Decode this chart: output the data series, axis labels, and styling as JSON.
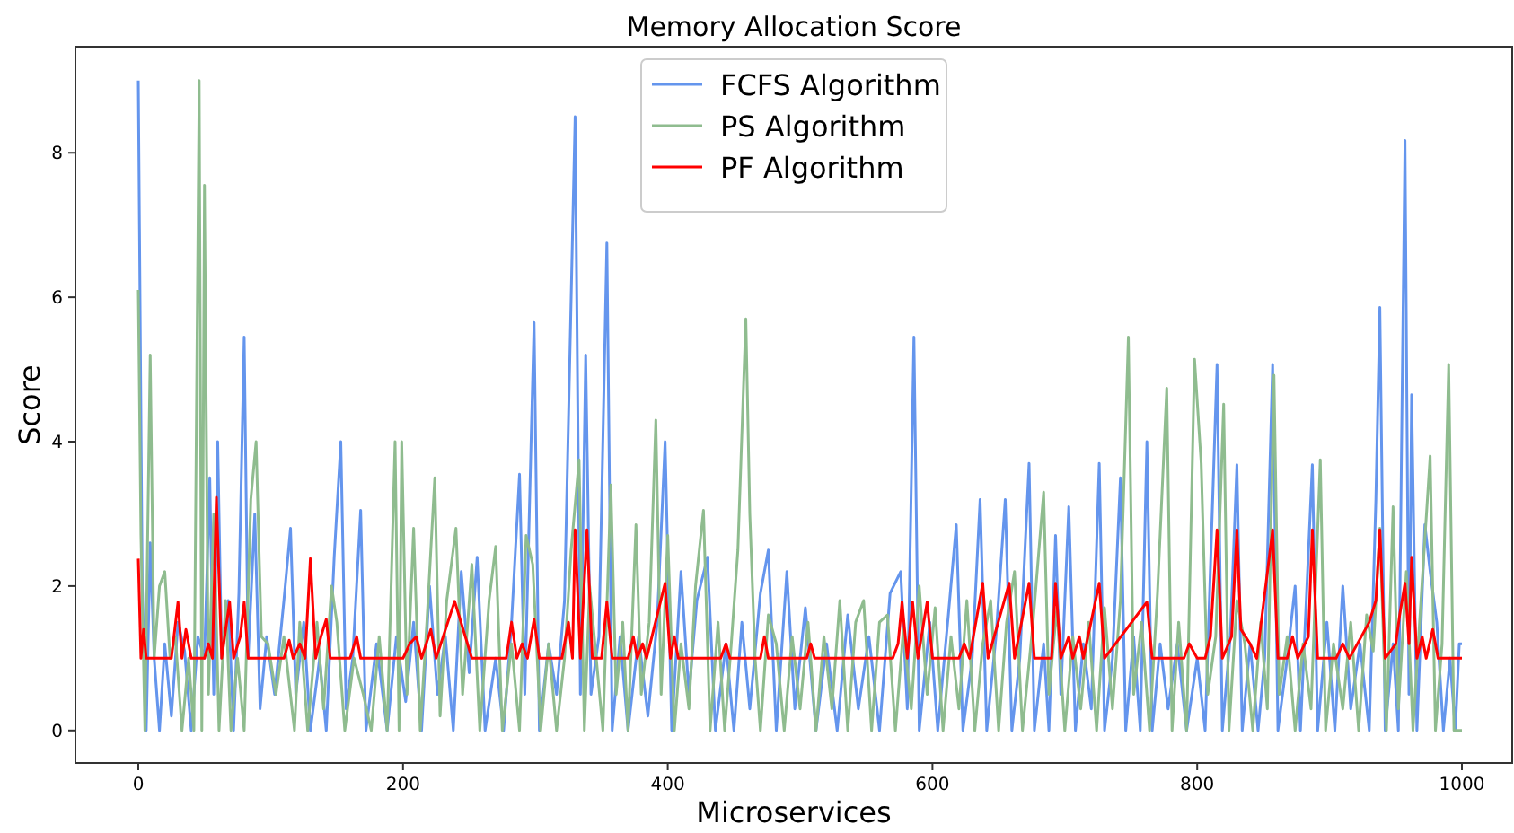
{
  "chart_data": {
    "type": "line",
    "title": "Memory Allocation Score",
    "xlabel": "Microservices",
    "ylabel": "Score",
    "xlim": [
      -47.5,
      1038
    ],
    "ylim": [
      -0.45,
      9.47
    ],
    "xticks": [
      0,
      200,
      400,
      600,
      800,
      1000
    ],
    "yticks": [
      0,
      2,
      4,
      6,
      8
    ],
    "grid": false,
    "legend": "top",
    "line_style": "solid",
    "marker": "none",
    "series": [
      {
        "name": "FCFS Algorithm",
        "color": "#6495ed",
        "x": [
          0,
          3,
          6,
          9,
          12,
          16,
          20,
          25,
          30,
          35,
          40,
          45,
          50,
          54,
          57,
          60,
          63,
          68,
          72,
          76,
          80,
          83,
          88,
          92,
          97,
          103,
          110,
          115,
          119,
          125,
          130,
          137,
          142,
          148,
          153,
          157,
          162,
          168,
          172,
          180,
          188,
          195,
          202,
          208,
          214,
          220,
          226,
          232,
          238,
          244,
          250,
          256,
          262,
          270,
          276,
          282,
          288,
          292,
          299,
          303,
          310,
          316,
          322,
          330,
          334,
          338,
          342,
          348,
          354,
          358,
          364,
          370,
          378,
          385,
          392,
          398,
          403,
          410,
          416,
          422,
          430,
          436,
          444,
          450,
          456,
          462,
          470,
          476,
          482,
          490,
          496,
          504,
          512,
          520,
          528,
          536,
          544,
          552,
          560,
          568,
          576,
          581,
          586,
          590,
          598,
          604,
          612,
          618,
          623,
          630,
          636,
          641,
          648,
          655,
          660,
          666,
          673,
          677,
          684,
          688,
          693,
          697,
          703,
          708,
          714,
          720,
          726,
          730,
          736,
          742,
          746,
          752,
          757,
          762,
          766,
          772,
          778,
          785,
          792,
          800,
          806,
          815,
          819,
          825,
          830,
          834,
          840,
          846,
          851,
          857,
          861,
          868,
          874,
          878,
          887,
          891,
          898,
          904,
          910,
          916,
          923,
          930,
          935,
          938,
          942,
          948,
          952,
          957,
          960,
          962,
          966,
          972,
          976,
          981,
          986,
          991,
          995,
          998,
          1000
        ],
        "values": [
          9.0,
          2.0,
          0,
          2.6,
          1.0,
          0,
          1.2,
          0.2,
          1.5,
          1.1,
          0,
          1.3,
          1.0,
          3.5,
          0.5,
          4.0,
          1.0,
          1.8,
          0,
          1.9,
          5.45,
          1.0,
          3.0,
          0.3,
          1.3,
          0.5,
          1.8,
          2.8,
          0.5,
          1.5,
          0,
          1.0,
          0,
          2.4,
          4.0,
          0.3,
          1.0,
          3.05,
          0,
          1.2,
          0,
          1.3,
          0.4,
          1.5,
          0,
          2.0,
          0.5,
          1.3,
          0,
          2.2,
          0.8,
          2.4,
          0,
          1.0,
          0,
          1.5,
          3.55,
          0.5,
          5.65,
          0,
          1.2,
          0.5,
          1.8,
          8.5,
          0.5,
          5.2,
          0.5,
          1.3,
          6.75,
          0,
          1.3,
          0,
          1.3,
          0.2,
          1.5,
          4.0,
          0,
          2.2,
          0.5,
          1.8,
          2.4,
          0,
          1.2,
          0,
          1.5,
          0.3,
          1.9,
          2.5,
          0,
          2.2,
          0.3,
          1.7,
          0,
          1.2,
          0,
          1.6,
          0.3,
          1.3,
          0,
          1.9,
          2.2,
          0.3,
          5.45,
          0,
          1.5,
          0,
          1.6,
          2.85,
          0,
          1.0,
          3.2,
          0,
          1.3,
          3.2,
          0,
          1.0,
          3.7,
          0,
          1.2,
          0,
          2.7,
          0.5,
          3.1,
          0,
          1.2,
          0.3,
          3.7,
          0,
          1.0,
          3.5,
          0,
          1.3,
          0,
          4.0,
          0,
          1.2,
          0.3,
          1.2,
          0,
          1.0,
          0,
          5.07,
          0,
          1.3,
          3.68,
          0,
          1.2,
          0,
          1.0,
          5.07,
          0,
          1.0,
          2.0,
          0,
          3.68,
          0,
          1.5,
          0,
          2.0,
          0.3,
          1.2,
          0,
          3.2,
          5.86,
          0,
          1.2,
          0,
          8.17,
          0.5,
          4.65,
          0,
          2.85,
          2.2,
          1.5,
          0,
          1.0,
          0,
          1.2,
          1.2
        ]
      },
      {
        "name": "PS Algorithm",
        "color": "#8fbc8f",
        "x": [
          0,
          2,
          5,
          9,
          12,
          16,
          20,
          24,
          28,
          33,
          38,
          42,
          46,
          48,
          50,
          53,
          57,
          61,
          66,
          70,
          75,
          80,
          85,
          89,
          93,
          98,
          104,
          110,
          118,
          122,
          128,
          135,
          140,
          146,
          150,
          156,
          163,
          170,
          176,
          182,
          188,
          194,
          197,
          199,
          203,
          208,
          213,
          218,
          224,
          228,
          233,
          240,
          245,
          252,
          258,
          265,
          270,
          275,
          282,
          288,
          293,
          298,
          304,
          310,
          316,
          322,
          327,
          333,
          337,
          341,
          346,
          351,
          357,
          361,
          366,
          370,
          376,
          380,
          386,
          391,
          395,
          400,
          405,
          410,
          416,
          421,
          427,
          432,
          438,
          443,
          448,
          453,
          459,
          462,
          466,
          470,
          476,
          482,
          488,
          494,
          500,
          506,
          512,
          518,
          524,
          530,
          536,
          542,
          548,
          554,
          560,
          566,
          572,
          578,
          584,
          590,
          596,
          602,
          608,
          614,
          620,
          626,
          632,
          638,
          644,
          650,
          656,
          662,
          668,
          676,
          684,
          688,
          694,
          700,
          706,
          712,
          718,
          724,
          730,
          736,
          742,
          748,
          752,
          758,
          764,
          770,
          777,
          781,
          786,
          792,
          798,
          803,
          808,
          814,
          820,
          824,
          830,
          836,
          842,
          848,
          853,
          858,
          862,
          868,
          874,
          880,
          886,
          893,
          897,
          903,
          910,
          916,
          922,
          928,
          933,
          938,
          943,
          948,
          952,
          958,
          963,
          968,
          976,
          980,
          985,
          990,
          994,
          1000
        ],
        "values": [
          6.1,
          2.7,
          0,
          5.2,
          1.0,
          2.0,
          2.2,
          1.0,
          1.3,
          0,
          1.0,
          0,
          9.0,
          0,
          7.55,
          0.5,
          3.0,
          0,
          1.8,
          0,
          1.0,
          0,
          3.2,
          4.0,
          1.3,
          1.2,
          0.5,
          1.3,
          0,
          1.5,
          0,
          1.5,
          0.3,
          2.0,
          1.5,
          0,
          1.0,
          0.5,
          0,
          1.3,
          0,
          4.0,
          0,
          4.0,
          0.5,
          2.8,
          0,
          1.5,
          3.5,
          0.2,
          1.8,
          2.8,
          0.5,
          2.3,
          0,
          1.8,
          2.55,
          0,
          1.2,
          0,
          2.7,
          2.3,
          0,
          1.2,
          0,
          1.0,
          2.5,
          3.75,
          0,
          2.0,
          1.0,
          0,
          3.4,
          0.5,
          1.5,
          0,
          2.85,
          0.5,
          1.5,
          4.3,
          0.5,
          2.7,
          0,
          1.2,
          0.3,
          2.0,
          3.05,
          0,
          1.5,
          0,
          1.2,
          2.5,
          5.7,
          3.0,
          1.0,
          0,
          1.6,
          1.2,
          0,
          1.3,
          0.3,
          1.5,
          0,
          1.3,
          0.3,
          1.8,
          0,
          1.5,
          1.8,
          0,
          1.5,
          1.6,
          0,
          1.4,
          0.3,
          2.0,
          0.5,
          1.7,
          0,
          1.3,
          0.3,
          1.8,
          0,
          1.2,
          1.8,
          0,
          1.5,
          2.2,
          0,
          1.5,
          3.3,
          0.5,
          1.7,
          0,
          1.3,
          0.3,
          1.5,
          0,
          1.7,
          0.3,
          1.8,
          5.45,
          0.5,
          1.5,
          0,
          1.9,
          4.74,
          0,
          1.5,
          0,
          5.14,
          3.7,
          0.5,
          1.3,
          4.52,
          0,
          1.8,
          1.2,
          0,
          1.5,
          0.3,
          4.92,
          0.5,
          1.3,
          0,
          1.2,
          0.3,
          3.75,
          0,
          1.2,
          0.3,
          1.5,
          0,
          1.6,
          1.1,
          2.8,
          0,
          3.1,
          0.3,
          2.2,
          0,
          1.5,
          3.8,
          0,
          1.2,
          5.07,
          0,
          0
        ]
      },
      {
        "name": "PF Algorithm",
        "color": "#ff0000",
        "x": [
          0,
          2,
          4,
          6,
          25,
          30,
          33,
          36,
          40,
          50,
          53,
          56,
          59,
          63,
          66,
          69,
          72,
          77,
          80,
          83,
          110,
          114,
          117,
          122,
          126,
          130,
          134,
          138,
          142,
          145,
          160,
          165,
          168,
          200,
          205,
          210,
          214,
          221,
          225,
          239,
          252,
          278,
          282,
          286,
          290,
          294,
          299,
          303,
          320,
          325,
          328,
          330,
          334,
          339,
          343,
          350,
          354,
          358,
          370,
          374,
          377,
          381,
          384,
          398,
          402,
          405,
          408,
          440,
          444,
          447,
          470,
          473,
          476,
          505,
          508,
          511,
          570,
          574,
          577,
          581,
          585,
          589,
          596,
          600,
          620,
          624,
          628,
          638,
          642,
          658,
          662,
          673,
          677,
          690,
          693,
          697,
          703,
          706,
          711,
          714,
          726,
          730,
          762,
          766,
          790,
          794,
          800,
          806,
          810,
          815,
          819,
          826,
          830,
          833,
          840,
          845,
          857,
          861,
          868,
          872,
          876,
          884,
          887,
          891,
          905,
          910,
          915,
          930,
          935,
          938,
          942,
          950,
          953,
          957,
          960,
          962,
          966,
          970,
          973,
          978,
          982,
          1000
        ],
        "values": [
          2.38,
          1.0,
          1.4,
          1.0,
          1.0,
          1.78,
          1.0,
          1.4,
          1.0,
          1.0,
          1.2,
          1.0,
          3.23,
          1.0,
          1.4,
          1.78,
          1.0,
          1.3,
          1.78,
          1.0,
          1.0,
          1.25,
          1.0,
          1.2,
          1.0,
          2.38,
          1.0,
          1.3,
          1.54,
          1.0,
          1.0,
          1.3,
          1.0,
          1.0,
          1.2,
          1.3,
          1.0,
          1.4,
          1.0,
          1.79,
          1.0,
          1.0,
          1.5,
          1.0,
          1.2,
          1.0,
          1.54,
          1.0,
          1.0,
          1.5,
          1.0,
          2.78,
          1.0,
          2.78,
          1.0,
          1.0,
          1.78,
          1.0,
          1.0,
          1.3,
          1.0,
          1.2,
          1.0,
          2.04,
          1.0,
          1.3,
          1.0,
          1.0,
          1.2,
          1.0,
          1.0,
          1.3,
          1.0,
          1.0,
          1.2,
          1.0,
          1.0,
          1.2,
          1.78,
          1.0,
          1.78,
          1.0,
          1.78,
          1.0,
          1.0,
          1.2,
          1.0,
          2.04,
          1.0,
          2.04,
          1.0,
          2.04,
          1.0,
          1.0,
          2.04,
          1.0,
          1.3,
          1.0,
          1.3,
          1.0,
          2.04,
          1.0,
          1.78,
          1.0,
          1.0,
          1.2,
          1.0,
          1.0,
          1.3,
          2.78,
          1.0,
          1.3,
          2.78,
          1.4,
          1.2,
          1.0,
          2.78,
          1.0,
          1.0,
          1.3,
          1.0,
          1.3,
          2.78,
          1.0,
          1.0,
          1.2,
          1.0,
          1.5,
          1.8,
          2.78,
          1.0,
          1.2,
          1.6,
          2.04,
          1.2,
          2.4,
          1.0,
          1.3,
          1.0,
          1.4,
          1.0,
          1.0
        ]
      }
    ]
  }
}
